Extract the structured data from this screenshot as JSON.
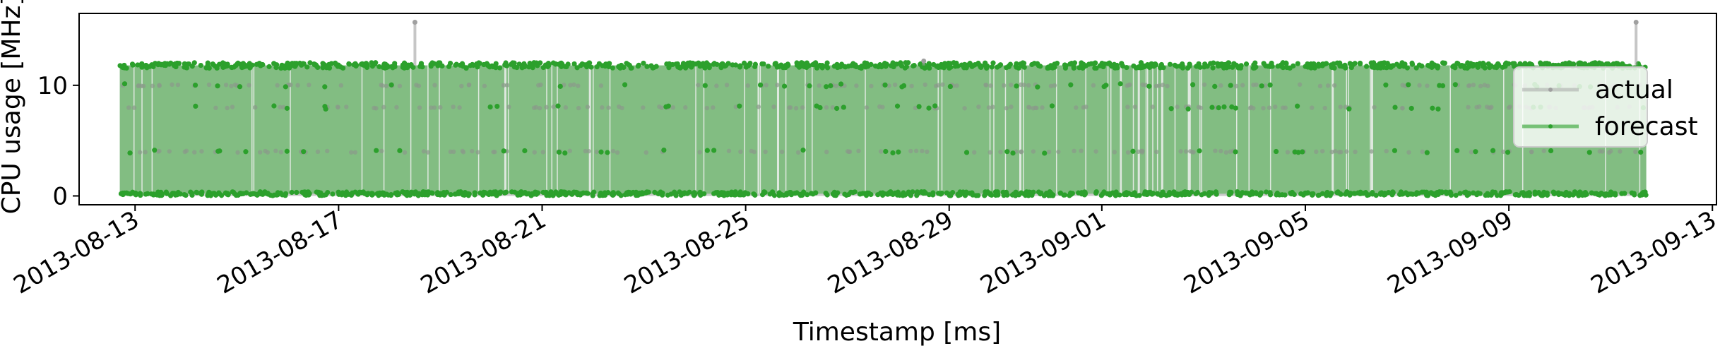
{
  "chart_data": {
    "type": "line",
    "title": "",
    "xlabel": "Timestamp [ms]",
    "ylabel": "CPU usage [MHz]",
    "x_tick_labels": [
      "2013-08-13",
      "2013-08-17",
      "2013-08-21",
      "2013-08-25",
      "2013-08-29",
      "2013-09-01",
      "2013-09-05",
      "2013-09-09",
      "2013-09-13"
    ],
    "y_ticks": [
      0,
      10
    ],
    "ylim": [
      -0.8,
      16.5
    ],
    "x_range_days": [
      "2013-08-12",
      "2013-09-13"
    ],
    "data_range": [
      "2013-08-12",
      "2013-09-11"
    ],
    "grid": false,
    "legend": {
      "position": "right",
      "entries": [
        "actual",
        "forecast"
      ]
    },
    "colors": {
      "actual": "#a0a0a0",
      "forecast": "#2ca02c",
      "forecast_fill": "#82bd82"
    },
    "series": [
      {
        "name": "actual",
        "typical_range": [
          0,
          11.8
        ],
        "outliers": [
          {
            "x": "2013-08-18",
            "y": 15.7
          },
          {
            "x": "2013-09-11",
            "y": 15.7
          },
          {
            "x": "2013-08-28",
            "y": 12.2
          }
        ]
      },
      {
        "name": "forecast",
        "typical_range": [
          0.1,
          11.8
        ],
        "baseline_level": 0.2,
        "upper_level": 11.8,
        "intermediate_levels": [
          4.0,
          8.0,
          10.0
        ]
      }
    ]
  }
}
